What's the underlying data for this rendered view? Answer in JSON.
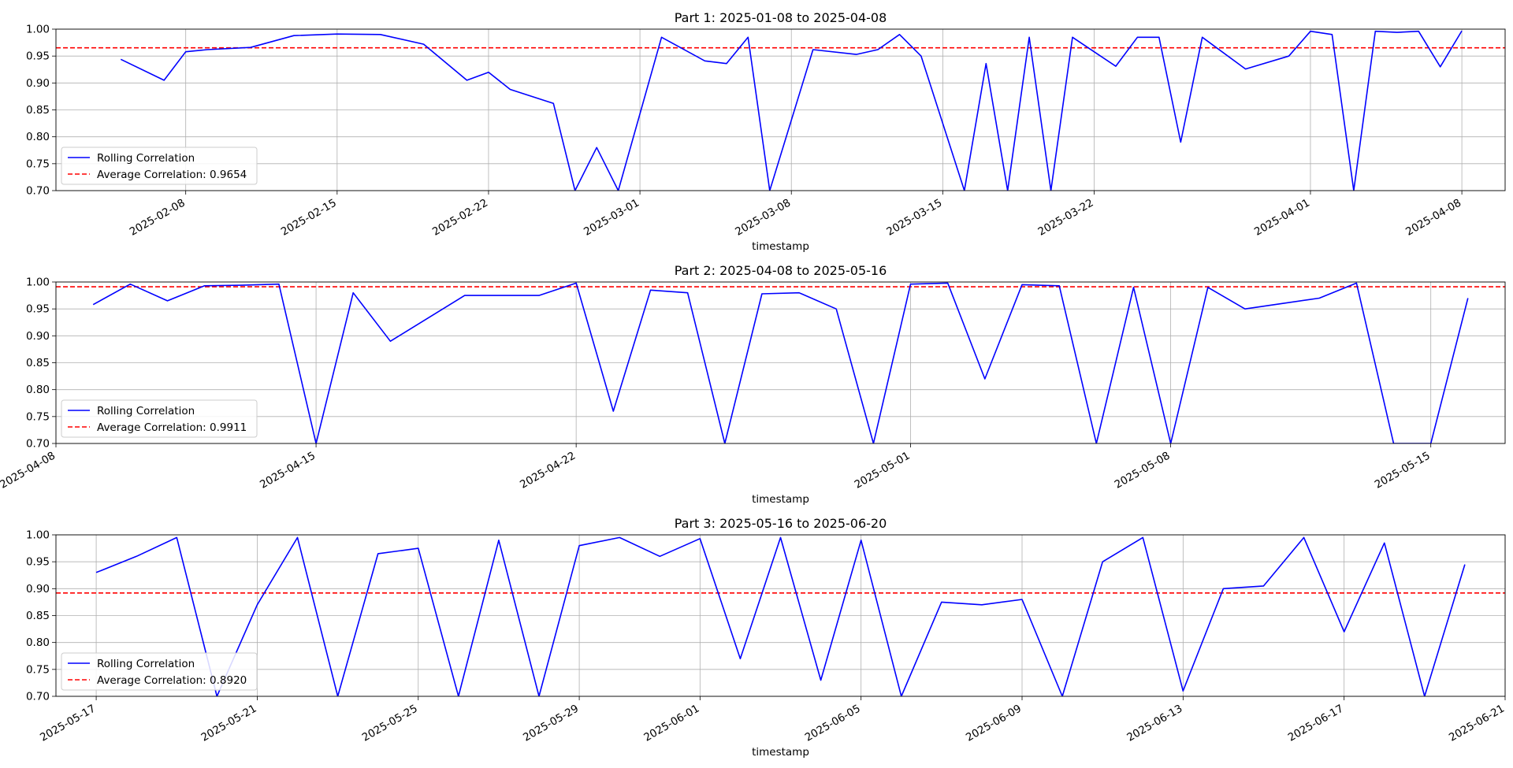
{
  "chart_data": [
    {
      "type": "line",
      "title": "Part 1: 2025-01-08 to 2025-04-08",
      "xlabel": "timestamp",
      "ylabel": "",
      "ylim": [
        0.7,
        1.0
      ],
      "xlim": [
        "2025-02-02",
        "2025-04-10"
      ],
      "grid": true,
      "legend_position": "lower-left",
      "x_tick_labels": [
        "2025-02-08",
        "2025-02-15",
        "2025-02-22",
        "2025-03-01",
        "2025-03-08",
        "2025-03-15",
        "2025-03-22",
        "2025-04-01",
        "2025-04-08"
      ],
      "y_tick_labels": [
        "0.70",
        "0.75",
        "0.80",
        "0.85",
        "0.90",
        "0.95",
        "1.00"
      ],
      "average": {
        "label": "Average Correlation: 0.9654",
        "value": 0.9654,
        "color": "#ff0000"
      },
      "series": [
        {
          "name": "Rolling Correlation",
          "color": "#0000ff",
          "x": [
            "2025-02-05",
            "2025-02-07",
            "2025-02-08",
            "2025-02-09",
            "2025-02-11",
            "2025-02-13",
            "2025-02-15",
            "2025-02-17",
            "2025-02-19",
            "2025-02-21",
            "2025-02-22",
            "2025-02-23",
            "2025-02-25",
            "2025-02-26",
            "2025-02-27",
            "2025-02-28",
            "2025-03-02",
            "2025-03-04",
            "2025-03-05",
            "2025-03-06",
            "2025-03-07",
            "2025-03-09",
            "2025-03-11",
            "2025-03-12",
            "2025-03-13",
            "2025-03-14",
            "2025-03-16",
            "2025-03-17",
            "2025-03-18",
            "2025-03-19",
            "2025-03-20",
            "2025-03-21",
            "2025-03-23",
            "2025-03-24",
            "2025-03-25",
            "2025-03-26",
            "2025-03-27",
            "2025-03-29",
            "2025-03-31",
            "2025-04-01",
            "2025-04-02",
            "2025-04-03",
            "2025-04-04",
            "2025-04-05",
            "2025-04-06",
            "2025-04-07",
            "2025-04-08"
          ],
          "y": [
            0.944,
            0.905,
            0.958,
            0.962,
            0.966,
            0.988,
            0.991,
            0.99,
            0.972,
            0.905,
            0.92,
            0.888,
            0.862,
            0.7,
            0.78,
            0.7,
            0.985,
            0.941,
            0.936,
            0.985,
            0.7,
            0.962,
            0.953,
            0.962,
            0.99,
            0.95,
            0.7,
            0.936,
            0.7,
            0.985,
            0.7,
            0.985,
            0.931,
            0.985,
            0.985,
            0.79,
            0.985,
            0.926,
            0.95,
            0.996,
            0.99,
            0.7,
            0.996,
            0.994,
            0.996,
            0.93,
            0.997
          ]
        }
      ]
    },
    {
      "type": "line",
      "title": "Part 2: 2025-04-08 to 2025-05-16",
      "xlabel": "timestamp",
      "ylabel": "",
      "ylim": [
        0.7,
        1.0
      ],
      "xlim": [
        "2025-04-08",
        "2025-05-17"
      ],
      "grid": true,
      "legend_position": "lower-left",
      "x_tick_labels": [
        "2025-04-08",
        "2025-04-15",
        "2025-04-22",
        "2025-05-01",
        "2025-05-08",
        "2025-05-15"
      ],
      "y_tick_labels": [
        "0.70",
        "0.75",
        "0.80",
        "0.85",
        "0.90",
        "0.95",
        "1.00"
      ],
      "average": {
        "label": "Average Correlation: 0.9911",
        "value": 0.9911,
        "color": "#ff0000"
      },
      "series": [
        {
          "name": "Rolling Correlation",
          "color": "#0000ff",
          "x": [
            "2025-04-09",
            "2025-04-10",
            "2025-04-11",
            "2025-04-12",
            "2025-04-13",
            "2025-04-14",
            "2025-04-15",
            "2025-04-16",
            "2025-04-17",
            "2025-04-19",
            "2025-04-21",
            "2025-04-22",
            "2025-04-23",
            "2025-04-24",
            "2025-04-25",
            "2025-04-26",
            "2025-04-27",
            "2025-04-28",
            "2025-04-29",
            "2025-04-30",
            "2025-05-01",
            "2025-05-02",
            "2025-05-03",
            "2025-05-04",
            "2025-05-05",
            "2025-05-06",
            "2025-05-07",
            "2025-05-08",
            "2025-05-09",
            "2025-05-10",
            "2025-05-11",
            "2025-05-12",
            "2025-05-13",
            "2025-05-14",
            "2025-05-15",
            "2025-05-16"
          ],
          "y": [
            0.958,
            0.996,
            0.965,
            0.993,
            0.994,
            0.996,
            0.7,
            0.98,
            0.89,
            0.975,
            0.975,
            0.998,
            0.76,
            0.985,
            0.98,
            0.7,
            0.978,
            0.98,
            0.95,
            0.7,
            0.996,
            0.998,
            0.82,
            0.995,
            0.993,
            0.7,
            0.99,
            0.7,
            0.99,
            0.95,
            0.96,
            0.97,
            0.998,
            0.7,
            0.7,
            0.97
          ]
        }
      ]
    },
    {
      "type": "line",
      "title": "Part 3: 2025-05-16 to 2025-06-20",
      "xlabel": "timestamp",
      "ylabel": "",
      "ylim": [
        0.7,
        1.0
      ],
      "xlim": [
        "2025-05-16",
        "2025-06-21"
      ],
      "grid": true,
      "legend_position": "lower-left",
      "x_tick_labels": [
        "2025-05-17",
        "2025-05-21",
        "2025-05-25",
        "2025-05-29",
        "2025-06-01",
        "2025-06-05",
        "2025-06-09",
        "2025-06-13",
        "2025-06-17",
        "2025-06-21"
      ],
      "y_tick_labels": [
        "0.70",
        "0.75",
        "0.80",
        "0.85",
        "0.90",
        "0.95",
        "1.00"
      ],
      "average": {
        "label": "Average Correlation: 0.8920",
        "value": 0.892,
        "color": "#ff0000"
      },
      "series": [
        {
          "name": "Rolling Correlation",
          "color": "#0000ff",
          "x": [
            "2025-05-17",
            "2025-05-18",
            "2025-05-19",
            "2025-05-20",
            "2025-05-21",
            "2025-05-22",
            "2025-05-23",
            "2025-05-24",
            "2025-05-25",
            "2025-05-26",
            "2025-05-27",
            "2025-05-28",
            "2025-05-29",
            "2025-05-30",
            "2025-05-31",
            "2025-06-01",
            "2025-06-02",
            "2025-06-03",
            "2025-06-04",
            "2025-06-05",
            "2025-06-06",
            "2025-06-07",
            "2025-06-08",
            "2025-06-09",
            "2025-06-10",
            "2025-06-11",
            "2025-06-12",
            "2025-06-13",
            "2025-06-14",
            "2025-06-15",
            "2025-06-16",
            "2025-06-17",
            "2025-06-18",
            "2025-06-19",
            "2025-06-20"
          ],
          "y": [
            0.93,
            0.96,
            0.995,
            0.7,
            0.87,
            0.995,
            0.7,
            0.965,
            0.975,
            0.7,
            0.99,
            0.7,
            0.98,
            0.995,
            0.96,
            0.993,
            0.77,
            0.995,
            0.73,
            0.99,
            0.7,
            0.875,
            0.87,
            0.88,
            0.7,
            0.95,
            0.995,
            0.71,
            0.9,
            0.905,
            0.995,
            0.82,
            0.985,
            0.7,
            0.945
          ]
        }
      ]
    }
  ]
}
